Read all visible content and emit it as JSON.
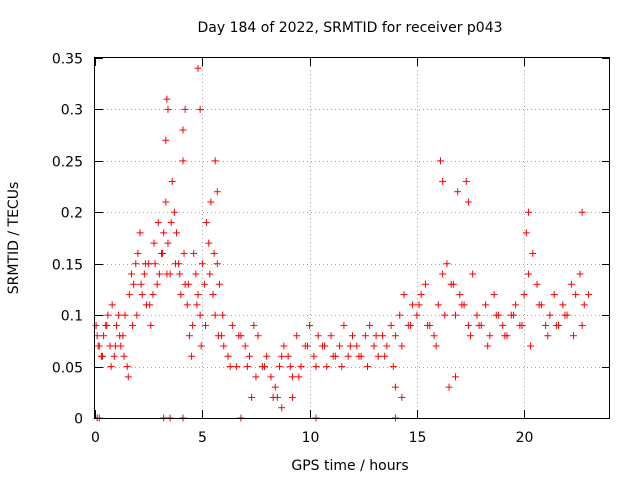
{
  "chart_data": {
    "type": "scatter",
    "title": "Day 184 of 2022, SRMTID for receiver p043",
    "xlabel": "GPS time / hours",
    "ylabel": "SRMTID / TECUs",
    "xlim": [
      0,
      24
    ],
    "ylim": [
      0,
      0.35
    ],
    "xticks": [
      0,
      5,
      10,
      15,
      20
    ],
    "xtick_labels": [
      "0",
      "5",
      "10",
      "15",
      "20"
    ],
    "yticks": [
      0,
      0.05,
      0.1,
      0.15,
      0.2,
      0.25,
      0.3,
      0.35
    ],
    "ytick_labels": [
      "0",
      "0.05",
      "0.1",
      "0.15",
      "0.2",
      "0.25",
      "0.3",
      "0.35"
    ],
    "grid": true,
    "marker": "plus",
    "color": "#ff0000",
    "series": [
      {
        "name": "SRMTID",
        "note": "representative subset of the dense scatter, read from the figure",
        "x": [
          0.05,
          0.1,
          0.2,
          0.3,
          0.4,
          0.5,
          0.6,
          0.7,
          0.8,
          0.9,
          1.0,
          1.1,
          1.2,
          1.3,
          1.4,
          1.5,
          1.6,
          1.7,
          1.8,
          1.9,
          2.0,
          2.1,
          2.2,
          2.3,
          2.4,
          2.5,
          2.6,
          2.7,
          2.8,
          2.9,
          3.0,
          3.1,
          3.2,
          3.3,
          3.4,
          3.5,
          3.6,
          3.7,
          3.8,
          3.9,
          4.0,
          4.1,
          4.2,
          4.3,
          4.4,
          4.5,
          4.6,
          4.7,
          4.8,
          4.9,
          5.0,
          5.1,
          5.2,
          5.3,
          5.4,
          5.5,
          5.6,
          5.7,
          5.8,
          5.9,
          6.0,
          6.2,
          6.4,
          6.6,
          6.8,
          7.0,
          7.2,
          7.4,
          7.6,
          7.8,
          8.0,
          8.2,
          8.4,
          8.6,
          8.8,
          9.0,
          9.2,
          9.4,
          9.6,
          9.8,
          10.0,
          10.2,
          10.4,
          10.6,
          10.8,
          11.0,
          11.2,
          11.4,
          11.6,
          11.8,
          12.0,
          12.2,
          12.4,
          12.6,
          12.8,
          13.0,
          13.2,
          13.4,
          13.6,
          13.8,
          14.0,
          14.2,
          14.4,
          14.6,
          14.8,
          15.0,
          15.2,
          15.4,
          15.6,
          15.8,
          16.0,
          16.2,
          16.4,
          16.6,
          16.8,
          17.0,
          17.2,
          17.4,
          17.6,
          17.8,
          18.0,
          18.2,
          18.4,
          18.6,
          18.8,
          19.0,
          19.2,
          19.4,
          19.6,
          19.8,
          20.0,
          20.2,
          20.4,
          20.6,
          20.8,
          21.0,
          21.2,
          21.4,
          21.6,
          21.8,
          22.0,
          22.2,
          22.4,
          22.6,
          22.8,
          23.0,
          0.15,
          0.35,
          0.55,
          0.75,
          0.95,
          1.15,
          1.35,
          1.55,
          1.75,
          1.95,
          2.15,
          2.35,
          2.55,
          2.75,
          2.95,
          3.15,
          3.35,
          3.55,
          3.75,
          3.95,
          4.15,
          4.35,
          4.55,
          4.75,
          4.95,
          5.15,
          5.35,
          5.55,
          5.75,
          5.95,
          6.3,
          6.7,
          7.1,
          7.5,
          7.9,
          8.3,
          8.7,
          9.1,
          9.5,
          9.9,
          10.3,
          10.7,
          11.1,
          11.5,
          11.9,
          12.3,
          12.7,
          13.1,
          13.5,
          13.9,
          14.3,
          14.7,
          15.1,
          15.5,
          15.9,
          16.3,
          16.7,
          17.1,
          17.5,
          17.9,
          18.3,
          18.7,
          19.1,
          19.5,
          19.9,
          20.3,
          20.7,
          21.1,
          21.5,
          21.9,
          22.3,
          22.7,
          3.3,
          3.35,
          3.4,
          4.1,
          4.2,
          4.8,
          4.9,
          5.6,
          5.7,
          16.1,
          16.2,
          16.9,
          17.3,
          17.4,
          20.1,
          20.2,
          22.7,
          8.5,
          8.7,
          9.2,
          14.0,
          14.3,
          7.3,
          16.5,
          16.8
        ],
        "y": [
          0.09,
          0.08,
          0.07,
          0.06,
          0.08,
          0.09,
          0.1,
          0.07,
          0.11,
          0.06,
          0.09,
          0.1,
          0.07,
          0.08,
          0.1,
          0.05,
          0.12,
          0.14,
          0.13,
          0.15,
          0.16,
          0.18,
          0.12,
          0.14,
          0.11,
          0.15,
          0.09,
          0.12,
          0.15,
          0.13,
          0.14,
          0.16,
          0.18,
          0.21,
          0.17,
          0.14,
          0.23,
          0.2,
          0.18,
          0.15,
          0.12,
          0.25,
          0.13,
          0.11,
          0.08,
          0.06,
          0.16,
          0.14,
          0.12,
          0.1,
          0.15,
          0.13,
          0.19,
          0.17,
          0.21,
          0.12,
          0.1,
          0.15,
          0.13,
          0.08,
          0.07,
          0.06,
          0.09,
          0.05,
          0.08,
          0.07,
          0.06,
          0.09,
          0.08,
          0.05,
          0.06,
          0.04,
          0.03,
          0.05,
          0.07,
          0.06,
          0.04,
          0.08,
          0.05,
          0.07,
          0.09,
          0.06,
          0.08,
          0.07,
          0.05,
          0.08,
          0.06,
          0.07,
          0.09,
          0.06,
          0.08,
          0.07,
          0.06,
          0.08,
          0.09,
          0.07,
          0.06,
          0.08,
          0.07,
          0.09,
          0.08,
          0.1,
          0.12,
          0.09,
          0.11,
          0.1,
          0.12,
          0.13,
          0.09,
          0.08,
          0.11,
          0.14,
          0.15,
          0.13,
          0.1,
          0.12,
          0.11,
          0.09,
          0.14,
          0.1,
          0.09,
          0.11,
          0.08,
          0.12,
          0.1,
          0.09,
          0.08,
          0.1,
          0.11,
          0.09,
          0.12,
          0.14,
          0.16,
          0.13,
          0.11,
          0.09,
          0.1,
          0.12,
          0.09,
          0.11,
          0.1,
          0.13,
          0.12,
          0.14,
          0.11,
          0.12,
          0.07,
          0.06,
          0.09,
          0.05,
          0.07,
          0.08,
          0.06,
          0.04,
          0.09,
          0.1,
          0.13,
          0.15,
          0.11,
          0.17,
          0.19,
          0.16,
          0.14,
          0.19,
          0.15,
          0.14,
          0.16,
          0.13,
          0.09,
          0.11,
          0.07,
          0.09,
          0.14,
          0.16,
          0.08,
          0.1,
          0.05,
          0.08,
          0.05,
          0.04,
          0.05,
          0.02,
          0.06,
          0.05,
          0.04,
          0.07,
          0.05,
          0.07,
          0.06,
          0.05,
          0.07,
          0.06,
          0.05,
          0.08,
          0.06,
          0.05,
          0.07,
          0.09,
          0.11,
          0.09,
          0.07,
          0.1,
          0.13,
          0.11,
          0.08,
          0.09,
          0.07,
          0.1,
          0.08,
          0.1,
          0.09,
          0.07,
          0.11,
          0.08,
          0.09,
          0.1,
          0.08,
          0.09,
          0.27,
          0.31,
          0.3,
          0.28,
          0.3,
          0.34,
          0.3,
          0.25,
          0.22,
          0.25,
          0.23,
          0.22,
          0.23,
          0.21,
          0.18,
          0.2,
          0.2,
          0.02,
          0.01,
          0.02,
          0.03,
          0.02,
          0.02,
          0.03,
          0.04
        ]
      }
    ],
    "baseline_marks_x": [
      0.1,
      0.2,
      3.2,
      3.5,
      4.1,
      6.8,
      10.3,
      14.0
    ]
  }
}
